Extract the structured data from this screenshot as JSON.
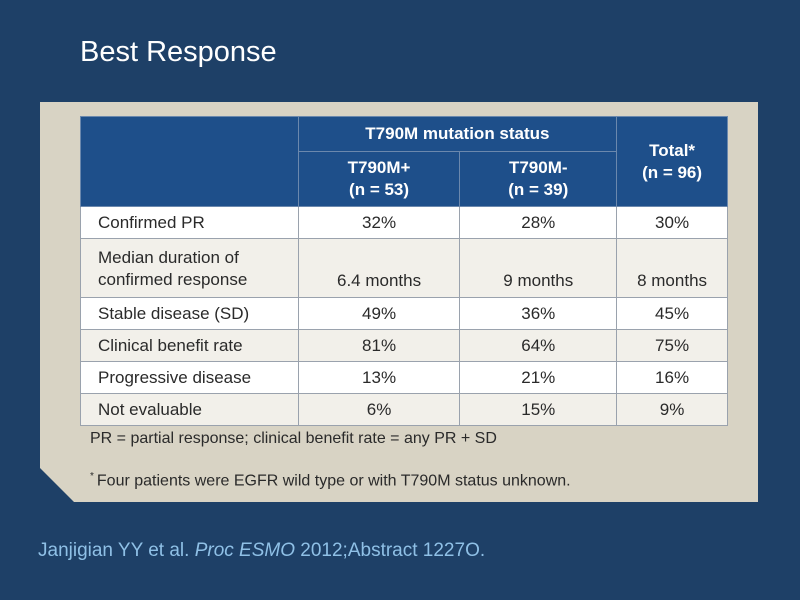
{
  "slide": {
    "title": "Best Response"
  },
  "table": {
    "group_header": "T790M mutation status",
    "columns": [
      {
        "line1": "T790M+",
        "line2": "(n = 53)"
      },
      {
        "line1": "T790M-",
        "line2": "(n = 39)"
      },
      {
        "line1": "Total*",
        "line2": "(n = 96)"
      }
    ],
    "rows": [
      {
        "label": "Confirmed PR",
        "values": [
          "32%",
          "28%",
          "30%"
        ]
      },
      {
        "label_line1": "Median duration of",
        "label_line2": "confirmed response",
        "values": [
          "6.4 months",
          "9 months",
          "8 months"
        ]
      },
      {
        "label": "Stable disease (SD)",
        "values": [
          "49%",
          "36%",
          "45%"
        ]
      },
      {
        "label": "Clinical benefit rate",
        "values": [
          "81%",
          "64%",
          "75%"
        ]
      },
      {
        "label": "Progressive disease",
        "values": [
          "13%",
          "21%",
          "16%"
        ]
      },
      {
        "label": "Not evaluable",
        "values": [
          "6%",
          "15%",
          "9%"
        ]
      }
    ]
  },
  "footnotes": {
    "abbreviations": "PR = partial response; clinical benefit rate = any PR + SD",
    "marker": "*",
    "asterisk_note": "Four patients were EGFR wild type or with T790M status unknown."
  },
  "citation": {
    "authors": "Janjigian YY et al.",
    "journal": "Proc ESMO",
    "rest": "2012;Abstract 1227O."
  },
  "colors": {
    "background": "#1e4067",
    "panel": "#d8d3c4",
    "header": "#1e4f8a",
    "citation": "#8fc0e6"
  }
}
